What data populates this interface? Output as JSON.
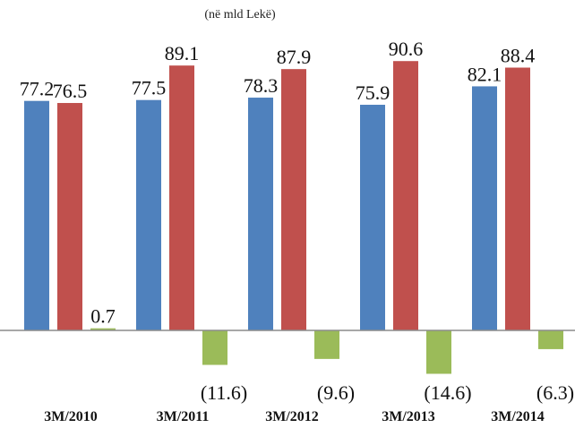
{
  "chart_data": {
    "type": "bar",
    "unit_note": "(në mld Lekë)",
    "categories": [
      "3M/2010",
      "3M/2011",
      "3M/2012",
      "3M/2013",
      "3M/2014"
    ],
    "series": [
      {
        "color": "#4f81bd",
        "values": [
          77.2,
          77.5,
          78.3,
          75.9,
          82.1
        ],
        "labels": [
          "77.2",
          "77.5",
          "78.3",
          "75.9",
          "82.1"
        ]
      },
      {
        "color": "#c0504d",
        "values": [
          76.5,
          89.1,
          87.9,
          90.6,
          88.4
        ],
        "labels": [
          "76.5",
          "89.1",
          "87.9",
          "90.6",
          "88.4"
        ]
      },
      {
        "color": "#9bbb59",
        "values": [
          0.7,
          -11.6,
          -9.6,
          -14.6,
          -6.3
        ],
        "labels": [
          "0.7",
          "(11.6)",
          "(9.6)",
          "(14.6)",
          "(6.3)"
        ]
      }
    ],
    "ylim": [
      -16,
      100
    ],
    "grid": false,
    "legend": "none"
  }
}
